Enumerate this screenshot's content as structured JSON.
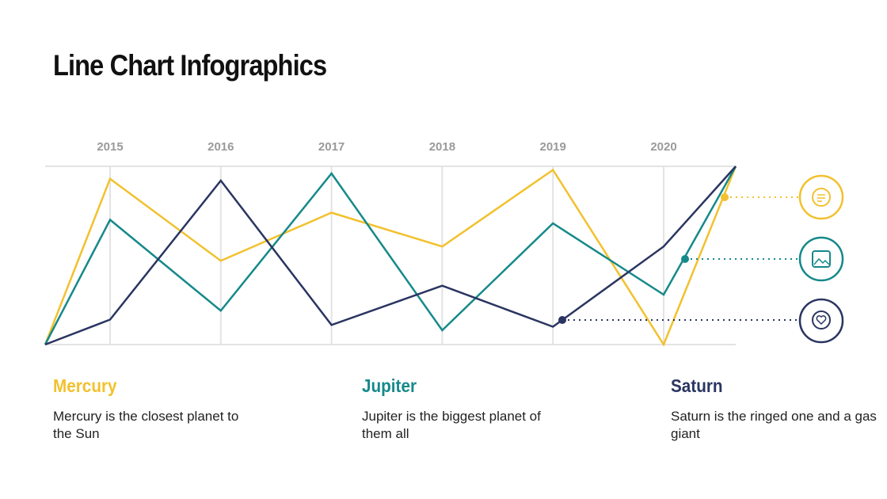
{
  "chart_data": {
    "type": "line",
    "title": "Line Chart Infographics",
    "categories": [
      null,
      "2015",
      "2016",
      "2017",
      "2018",
      "2019",
      "2020",
      null
    ],
    "series": [
      {
        "name": "Mercury",
        "color": "#f2c12e",
        "description": "Mercury is the closest planet to the Sun",
        "values": [
          0,
          93,
          47,
          74,
          55,
          98,
          0,
          100
        ]
      },
      {
        "name": "Jupiter",
        "color": "#16898a",
        "description": "Jupiter is the biggest planet of them all",
        "values": [
          0,
          70,
          19,
          96,
          8,
          68,
          28,
          100
        ]
      },
      {
        "name": "Saturn",
        "color": "#2a3561",
        "description": "Saturn is the ringed one and a gas giant",
        "values": [
          0,
          14,
          92,
          11,
          33,
          10,
          55,
          100
        ]
      }
    ],
    "ylim": [
      0,
      100
    ],
    "grid": true
  }
}
